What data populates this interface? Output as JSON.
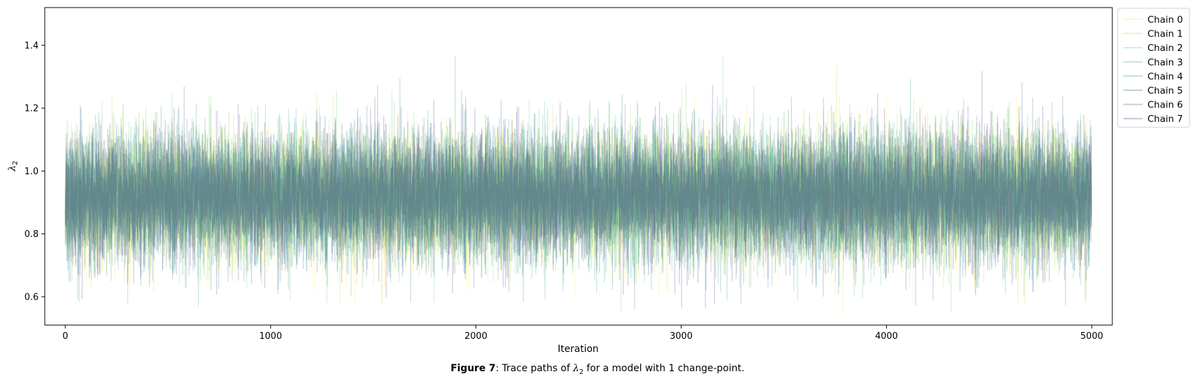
{
  "chart_data": {
    "type": "line",
    "xlabel": "Iteration",
    "ylabel_symbol": "λ",
    "ylabel_subscript": "2",
    "xlim": [
      -100,
      5100
    ],
    "ylim": [
      0.51,
      1.52
    ],
    "x_ticks": [
      0,
      1000,
      2000,
      3000,
      4000,
      5000
    ],
    "y_ticks": [
      0.6,
      0.8,
      1.0,
      1.2,
      1.4
    ],
    "x_tick_labels": [
      "0",
      "1000",
      "2000",
      "3000",
      "4000",
      "5000"
    ],
    "y_tick_labels": [
      "0.6",
      "0.8",
      "1.0",
      "1.2",
      "1.4"
    ],
    "n_iterations": 5000,
    "legend_position": "outside-upper-right",
    "grid": false,
    "series": [
      {
        "name": "Chain 0",
        "color": "#fde725",
        "mean": 0.92,
        "sd": 0.1
      },
      {
        "name": "Chain 1",
        "color": "#addc30",
        "mean": 0.92,
        "sd": 0.1
      },
      {
        "name": "Chain 2",
        "color": "#5ec962",
        "mean": 0.92,
        "sd": 0.1
      },
      {
        "name": "Chain 3",
        "color": "#28ae80",
        "mean": 0.92,
        "sd": 0.1
      },
      {
        "name": "Chain 4",
        "color": "#21918c",
        "mean": 0.92,
        "sd": 0.1
      },
      {
        "name": "Chain 5",
        "color": "#2c728e",
        "mean": 0.92,
        "sd": 0.1
      },
      {
        "name": "Chain 6",
        "color": "#3b528b",
        "mean": 0.92,
        "sd": 0.1
      },
      {
        "name": "Chain 7",
        "color": "#472d7b",
        "mean": 0.92,
        "sd": 0.1
      }
    ]
  },
  "caption": {
    "label": "Figure 7",
    "text_before": ": Trace paths of ",
    "symbol": "λ",
    "subscript": "2",
    "text_after": " for a model with 1 change-point."
  }
}
